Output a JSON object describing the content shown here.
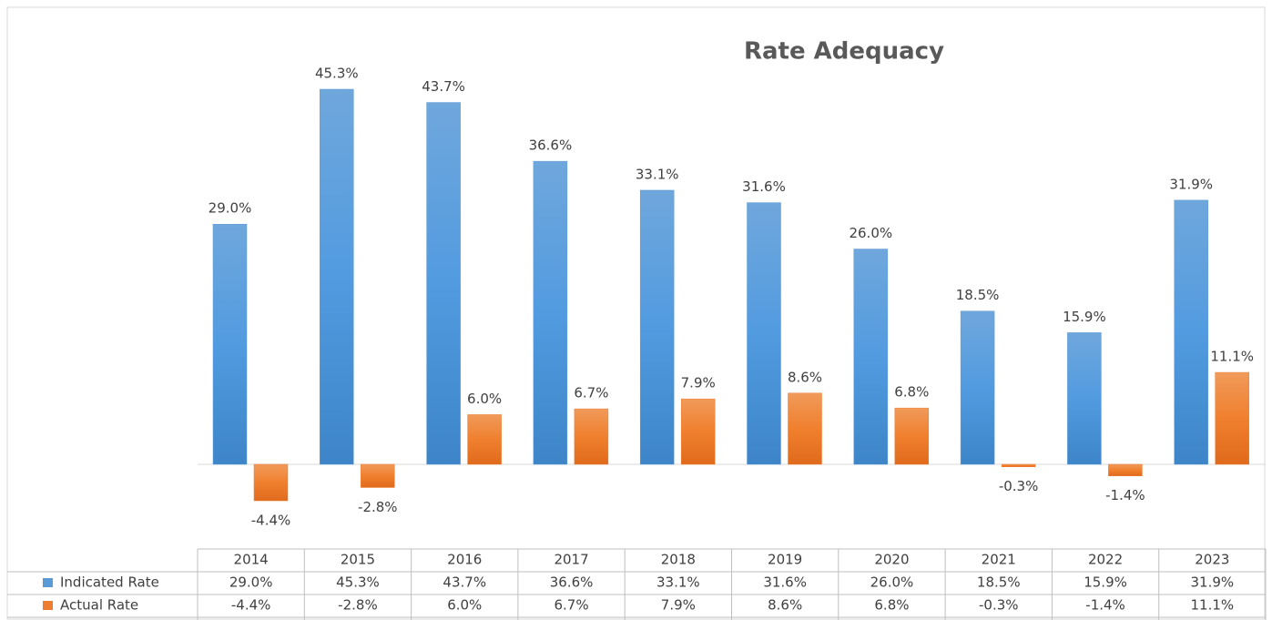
{
  "chart_data": {
    "type": "bar",
    "title": "Rate Adequacy",
    "categories": [
      "2014",
      "2015",
      "2016",
      "2017",
      "2018",
      "2019",
      "2020",
      "2021",
      "2022",
      "2023"
    ],
    "series": [
      {
        "name": "Indicated Rate",
        "color": "#5b9bd5",
        "values": [
          29.0,
          45.3,
          43.7,
          36.6,
          33.1,
          31.6,
          26.0,
          18.5,
          15.9,
          31.9
        ],
        "value_labels": [
          "29.0%",
          "45.3%",
          "43.7%",
          "36.6%",
          "33.1%",
          "31.6%",
          "26.0%",
          "18.5%",
          "15.9%",
          "31.9%"
        ]
      },
      {
        "name": "Actual Rate",
        "color": "#ed7d31",
        "values": [
          -4.4,
          -2.8,
          6.0,
          6.7,
          7.9,
          8.6,
          6.8,
          -0.3,
          -1.4,
          11.1
        ],
        "value_labels": [
          "-4.4%",
          "-2.8%",
          "6.0%",
          "6.7%",
          "7.9%",
          "8.6%",
          "6.8%",
          "-0.3%",
          "-1.4%",
          "11.1%"
        ]
      }
    ]
  }
}
